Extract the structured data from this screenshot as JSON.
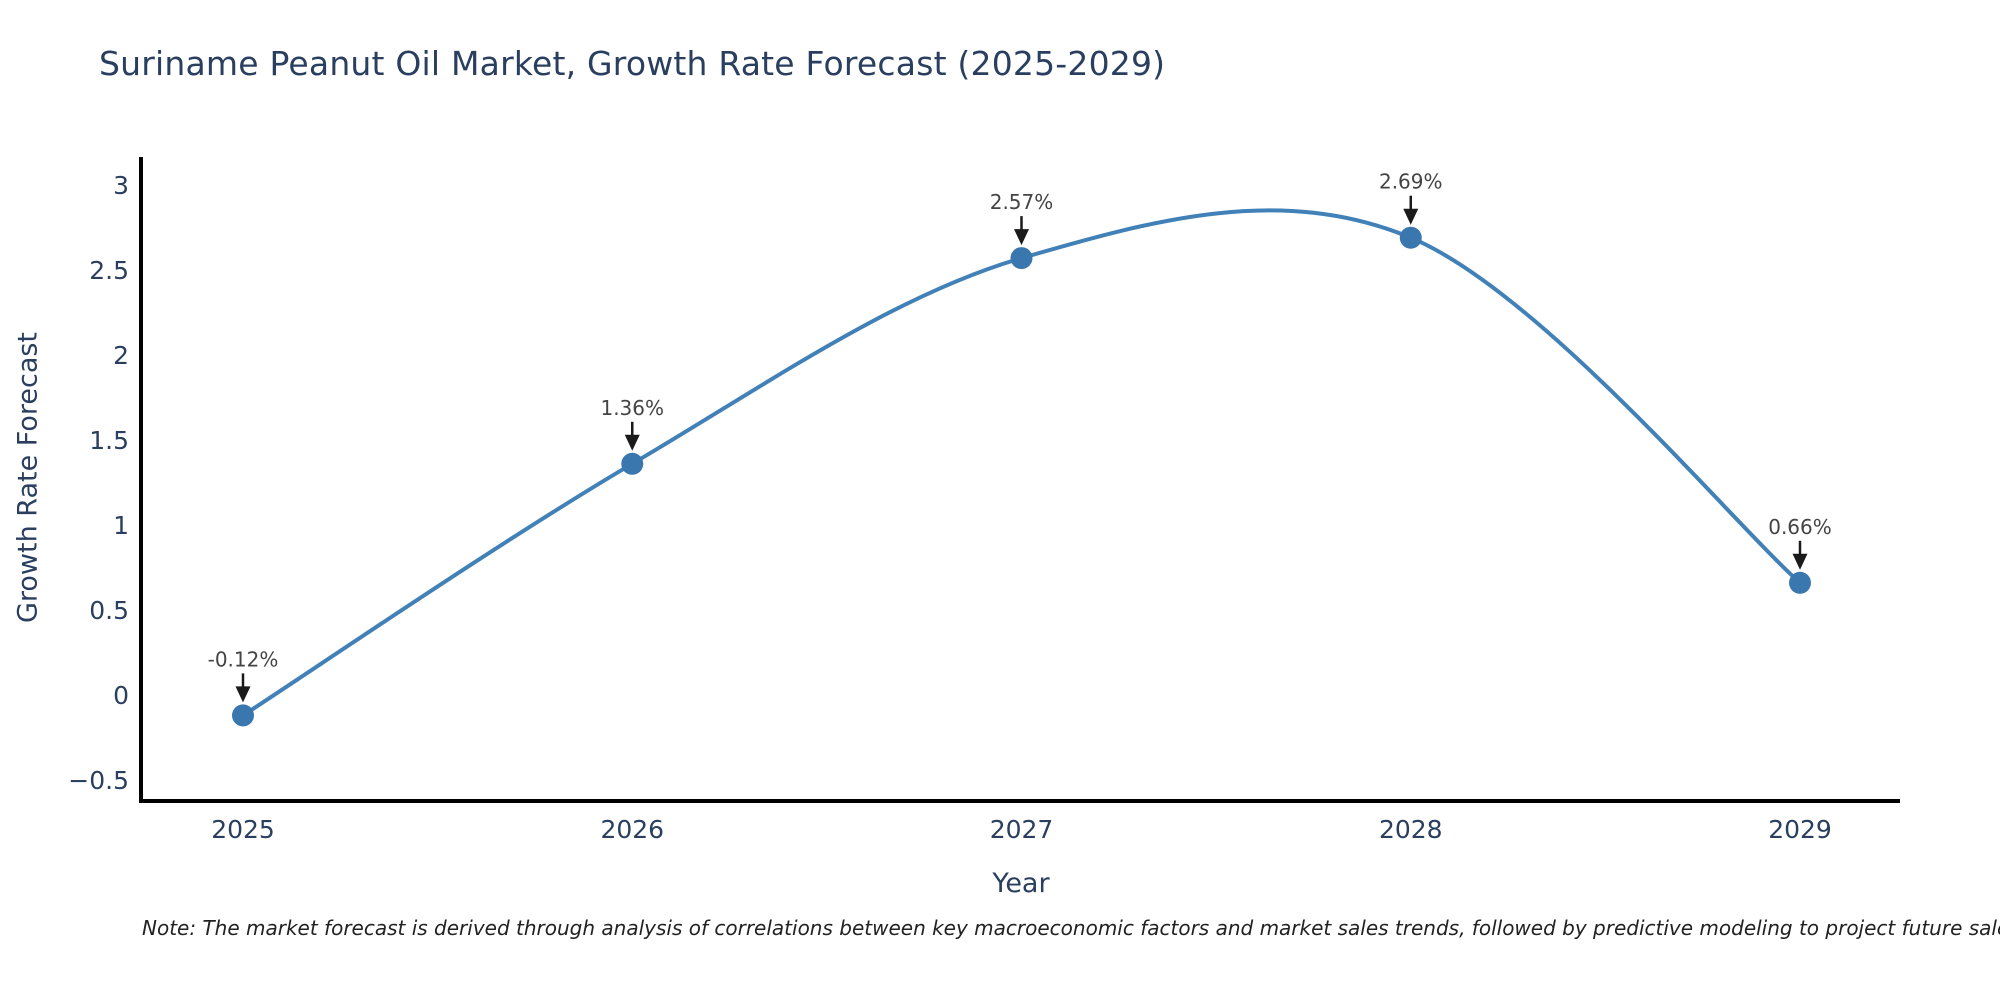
{
  "chart_data": {
    "type": "line",
    "title": "Suriname Peanut Oil Market, Growth Rate Forecast (2025-2029)",
    "xlabel": "Year",
    "ylabel": "Growth Rate Forecast",
    "x": [
      "2025",
      "2026",
      "2027",
      "2028",
      "2029"
    ],
    "series": [
      {
        "name": "Growth Rate Forecast",
        "values": [
          -0.12,
          1.36,
          2.57,
          2.69,
          0.66
        ]
      }
    ],
    "point_labels": [
      "-0.12%",
      "1.36%",
      "2.57%",
      "2.69%",
      "0.66%"
    ],
    "ytick_values": [
      3,
      2.5,
      2,
      1.5,
      1,
      0.5,
      0,
      -0.5
    ],
    "ytick_labels": [
      "3",
      "2.5",
      "2",
      "1.5",
      "1",
      "0.5",
      "0",
      "−0.5"
    ],
    "ylim": [
      -0.63,
      3.17
    ],
    "grid": false,
    "legend": "none",
    "line_shape": "spline",
    "line_color": "#4181b8",
    "marker_color": "#3a77ae",
    "axis_color": "#000000",
    "annotation_color": "#444444",
    "arrow_color": "#1a1a1a",
    "text_color": "#2a3f5f"
  },
  "note": "Note: The market forecast is derived through analysis of correlations between key macroeconomic factors and market sales trends, followed by predictive modeling to project future sales."
}
